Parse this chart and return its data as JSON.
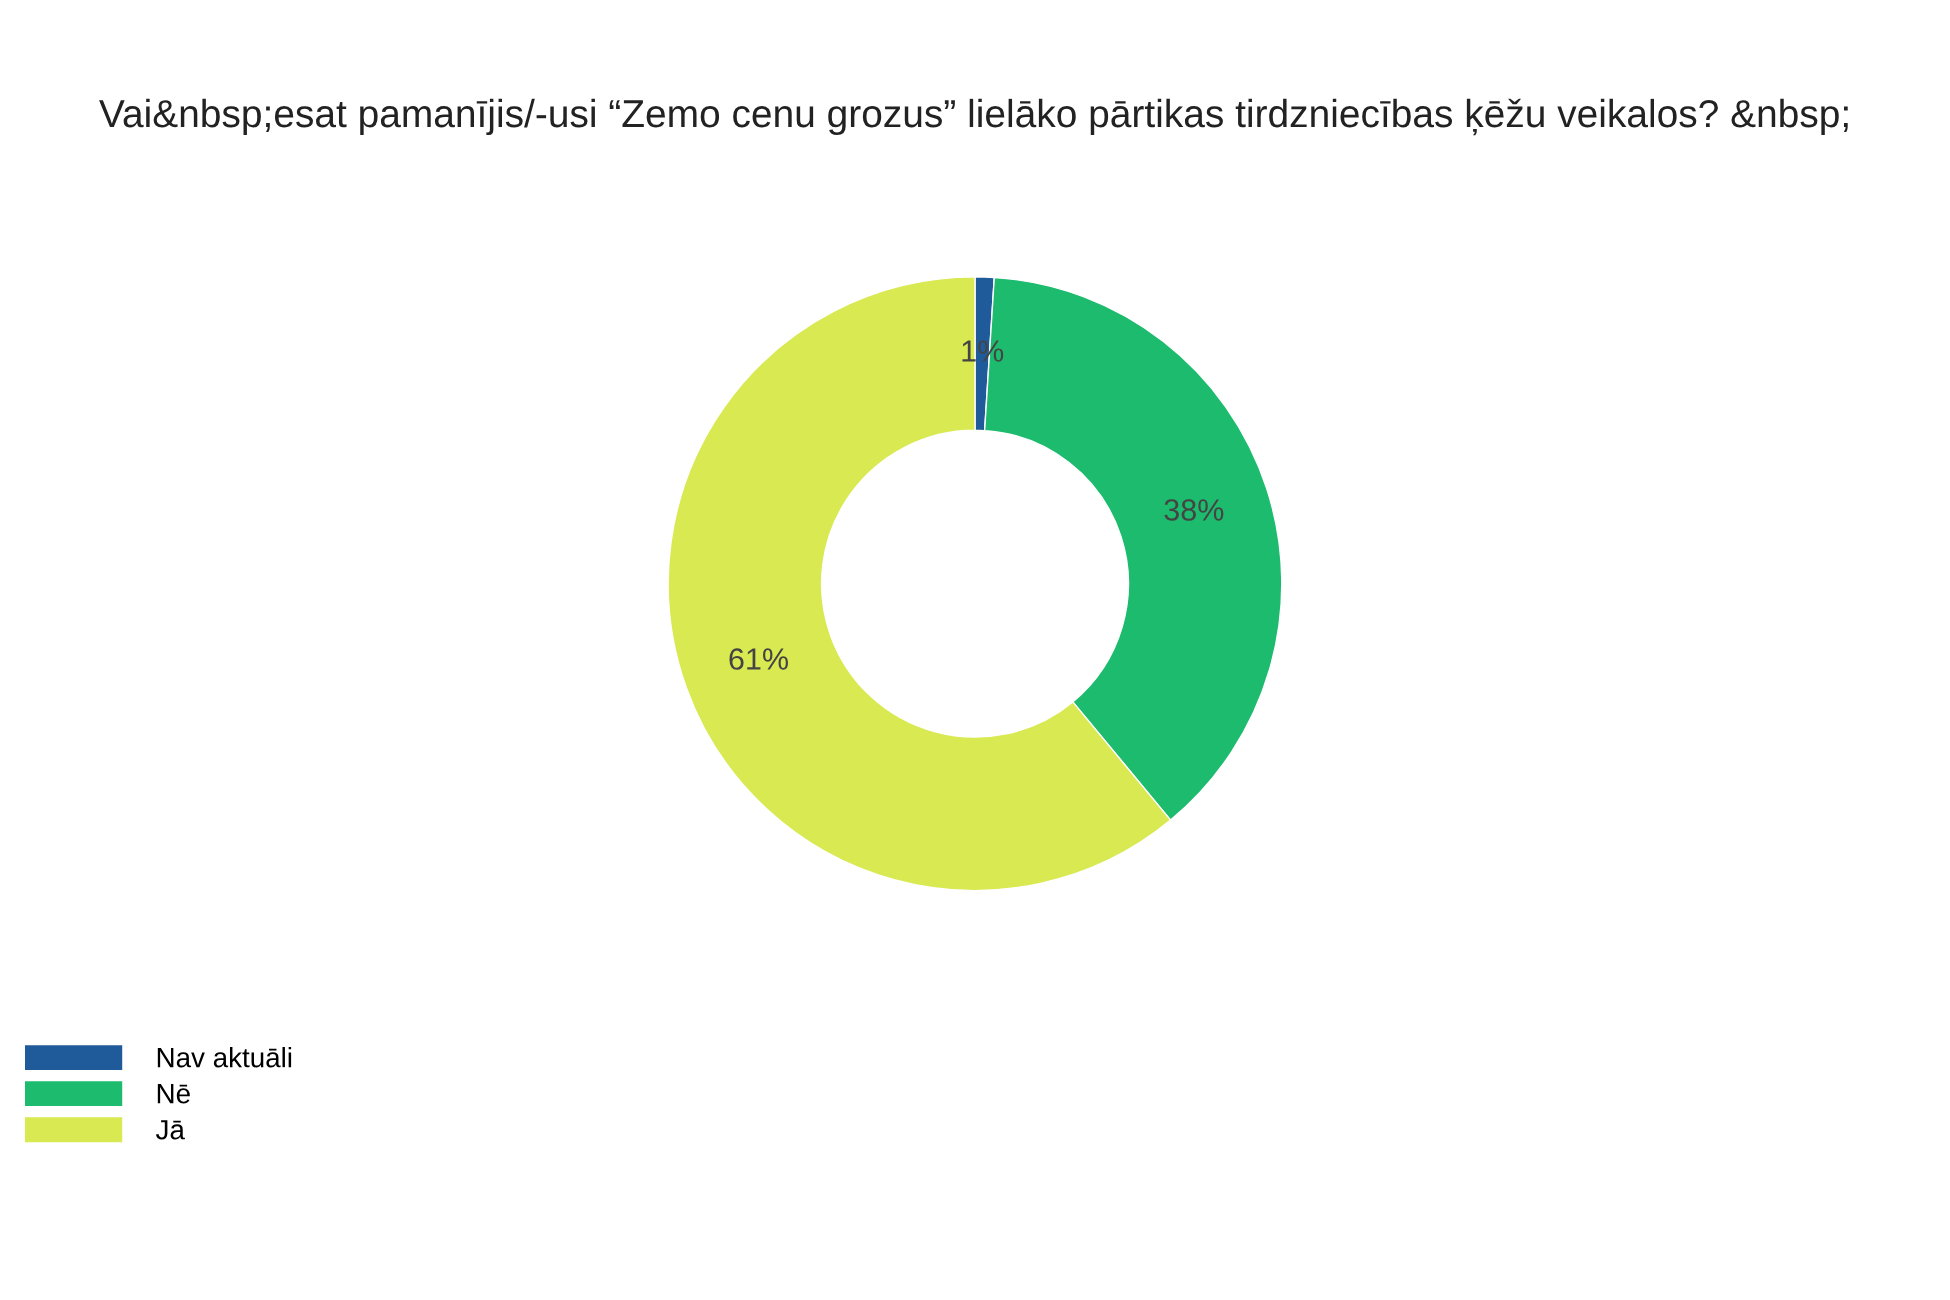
{
  "chart_data": {
    "type": "donut",
    "title": "Vai&nbsp;esat pamanījis/-usi “Zemo cenu grozus” lielāko pārtikas tirdzniecības ķēžu veikalos? &nbsp;",
    "categories": [
      "Nav aktuāli",
      "Nē",
      "Jā"
    ],
    "values": [
      1,
      38,
      61
    ],
    "colors": [
      "#1f5a9a",
      "#1dbb6e",
      "#d9e951"
    ],
    "value_labels": [
      "1%",
      "38%",
      "61%"
    ],
    "legend": "bottom left"
  }
}
